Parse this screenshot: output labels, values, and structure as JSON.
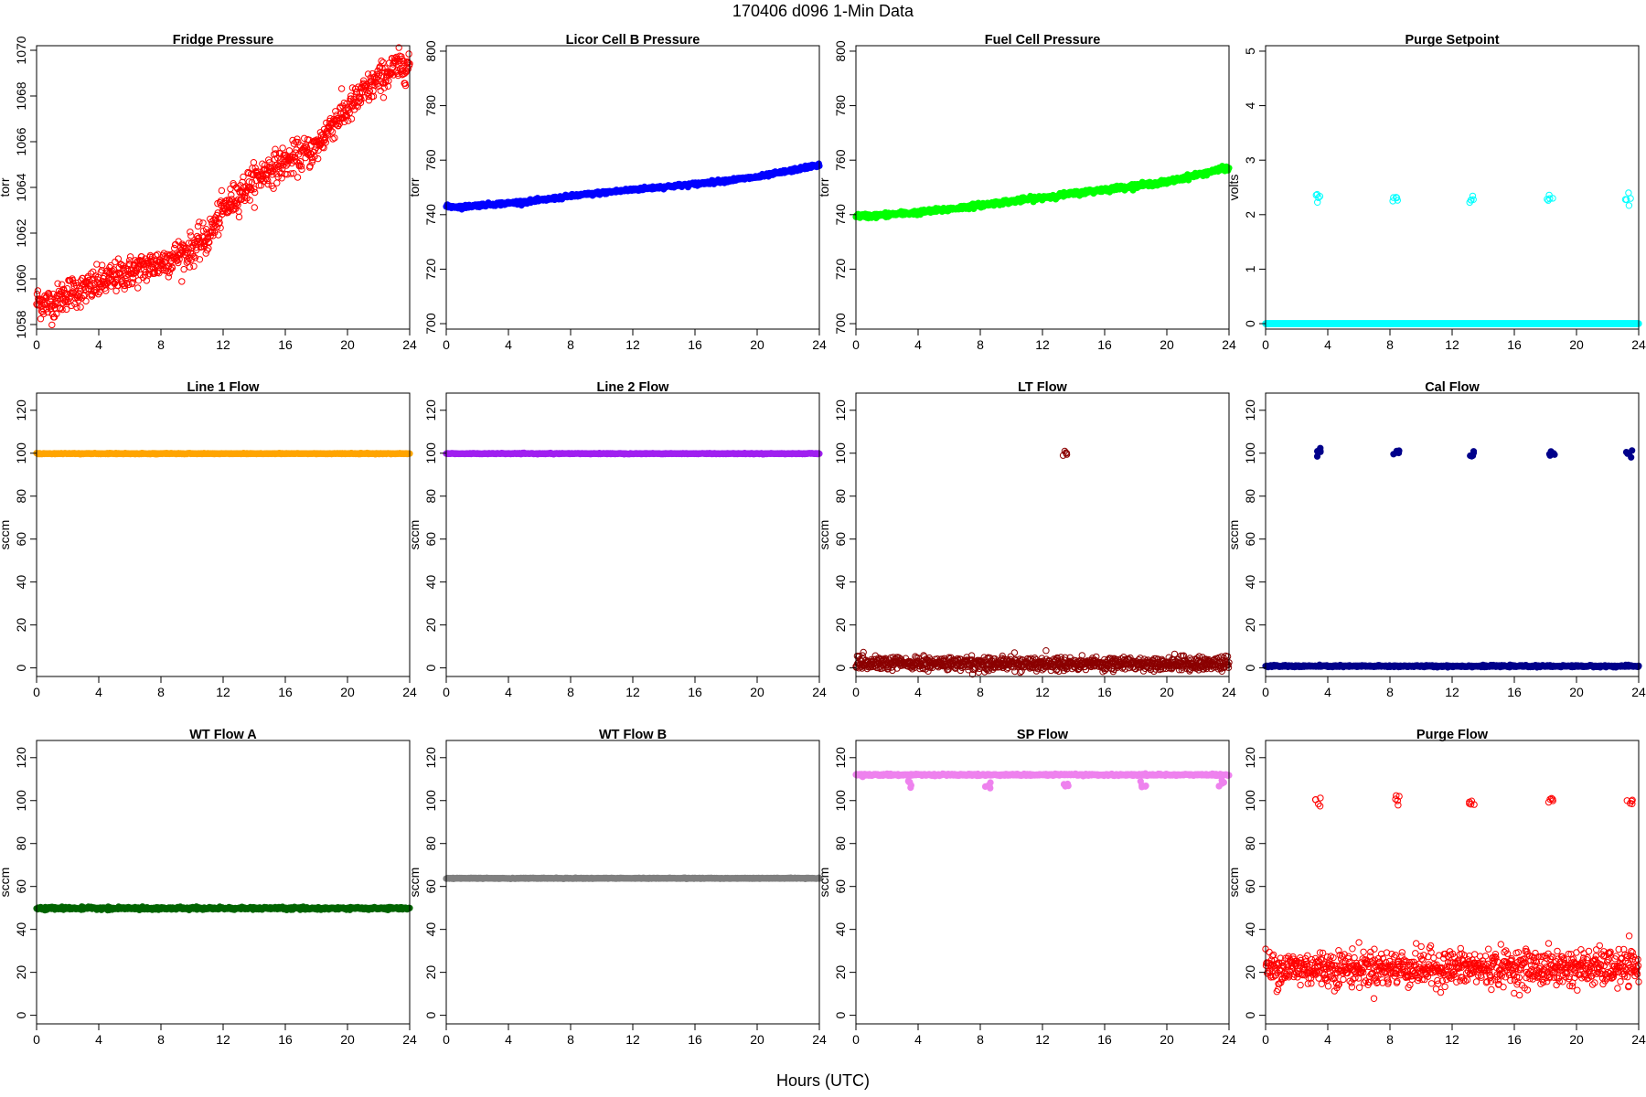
{
  "figure": {
    "title": "170406   d096   1-Min Data",
    "xlabel": "Hours (UTC)"
  },
  "chart_data": [
    {
      "type": "scatter",
      "title": "Fridge Pressure",
      "ylabel": "torr",
      "color": "#ff0000",
      "marker": "open",
      "xlim": [
        0,
        24
      ],
      "ylim": [
        1057.8,
        1070.2
      ],
      "x_ticks": [
        0,
        4,
        8,
        12,
        16,
        20,
        24
      ],
      "y_ticks": [
        1058,
        1060,
        1062,
        1064,
        1066,
        1068,
        1070
      ],
      "trend": [
        [
          0,
          1059.0
        ],
        [
          1,
          1058.9
        ],
        [
          2,
          1059.4
        ],
        [
          3,
          1059.5
        ],
        [
          4,
          1059.8
        ],
        [
          6,
          1060.3
        ],
        [
          8,
          1060.7
        ],
        [
          9,
          1061.0
        ],
        [
          10,
          1061.3
        ],
        [
          11,
          1061.8
        ],
        [
          12,
          1063.0
        ],
        [
          13,
          1063.7
        ],
        [
          14,
          1064.3
        ],
        [
          15,
          1064.8
        ],
        [
          16,
          1065.1
        ],
        [
          17,
          1065.4
        ],
        [
          18,
          1065.7
        ],
        [
          19,
          1066.8
        ],
        [
          20,
          1067.4
        ],
        [
          21,
          1068.1
        ],
        [
          22,
          1068.7
        ],
        [
          23,
          1069.2
        ],
        [
          24,
          1069.4
        ]
      ],
      "noise": 0.35
    },
    {
      "type": "scatter",
      "title": "Licor Cell B Pressure",
      "ylabel": "torr",
      "color": "#0000ff",
      "marker": "filled",
      "xlim": [
        0,
        24
      ],
      "ylim": [
        698,
        802
      ],
      "x_ticks": [
        0,
        4,
        8,
        12,
        16,
        20,
        24
      ],
      "y_ticks": [
        700,
        720,
        740,
        760,
        780,
        800
      ],
      "trend": [
        [
          0,
          743
        ],
        [
          1,
          742.8
        ],
        [
          2,
          743.4
        ],
        [
          4,
          744.2
        ],
        [
          6,
          745.2
        ],
        [
          8,
          746.8
        ],
        [
          12,
          749.2
        ],
        [
          16,
          751.2
        ],
        [
          20,
          753.8
        ],
        [
          22,
          756
        ],
        [
          24,
          758.3
        ]
      ],
      "noise": 0.3
    },
    {
      "type": "scatter",
      "title": "Fuel Cell Pressure",
      "ylabel": "torr",
      "color": "#00ff00",
      "marker": "filled",
      "xlim": [
        0,
        24
      ],
      "ylim": [
        698,
        802
      ],
      "x_ticks": [
        0,
        4,
        8,
        12,
        16,
        20,
        24
      ],
      "y_ticks": [
        700,
        720,
        740,
        760,
        780,
        800
      ],
      "trend": [
        [
          0,
          739.5
        ],
        [
          1,
          739.5
        ],
        [
          2,
          740.0
        ],
        [
          4,
          740.8
        ],
        [
          6,
          742.0
        ],
        [
          8,
          743.5
        ],
        [
          12,
          746.3
        ],
        [
          16,
          749.2
        ],
        [
          20,
          752.0
        ],
        [
          24,
          757.3
        ]
      ],
      "noise": 0.4
    },
    {
      "type": "scatter",
      "title": "Purge Setpoint",
      "ylabel": "volts",
      "color": "#00ffff",
      "marker": "open",
      "xlim": [
        0,
        24
      ],
      "ylim": [
        -0.1,
        5.1
      ],
      "x_ticks": [
        0,
        4,
        8,
        12,
        16,
        20,
        24
      ],
      "y_ticks": [
        0,
        1,
        2,
        3,
        4,
        5
      ],
      "baseline": 0,
      "noise": 0,
      "spikes": [
        {
          "x": 3.3,
          "y": 2.3
        },
        {
          "x": 8.3,
          "y": 2.28
        },
        {
          "x": 13.3,
          "y": 2.3
        },
        {
          "x": 18.3,
          "y": 2.3
        },
        {
          "x": 23.3,
          "y": 2.3
        }
      ]
    },
    {
      "type": "scatter",
      "title": "Line 1 Flow",
      "ylabel": "sccm",
      "color": "#ffa500",
      "marker": "filled",
      "xlim": [
        0,
        24
      ],
      "ylim": [
        -4,
        128
      ],
      "x_ticks": [
        0,
        4,
        8,
        12,
        16,
        20,
        24
      ],
      "y_ticks": [
        0,
        20,
        40,
        60,
        80,
        100,
        120
      ],
      "baseline": 99.8,
      "noise": 0.1
    },
    {
      "type": "scatter",
      "title": "Line 2 Flow",
      "ylabel": "sccm",
      "color": "#a020f0",
      "marker": "filled",
      "xlim": [
        0,
        24
      ],
      "ylim": [
        -4,
        128
      ],
      "x_ticks": [
        0,
        4,
        8,
        12,
        16,
        20,
        24
      ],
      "y_ticks": [
        0,
        20,
        40,
        60,
        80,
        100,
        120
      ],
      "baseline": 99.8,
      "noise": 0.1
    },
    {
      "type": "scatter",
      "title": "LT Flow",
      "ylabel": "sccm",
      "color": "#8b0000",
      "marker": "open",
      "xlim": [
        0,
        24
      ],
      "ylim": [
        -4,
        128
      ],
      "x_ticks": [
        0,
        4,
        8,
        12,
        16,
        20,
        24
      ],
      "y_ticks": [
        0,
        20,
        40,
        60,
        80,
        100,
        120
      ],
      "baseline": 2,
      "noise": 1.6,
      "spikes": [
        {
          "x": 13.4,
          "y": 100
        }
      ]
    },
    {
      "type": "scatter",
      "title": "Cal Flow",
      "ylabel": "sccm",
      "color": "#00008b",
      "marker": "filled",
      "xlim": [
        0,
        24
      ],
      "ylim": [
        -4,
        128
      ],
      "x_ticks": [
        0,
        4,
        8,
        12,
        16,
        20,
        24
      ],
      "y_ticks": [
        0,
        20,
        40,
        60,
        80,
        100,
        120
      ],
      "baseline": 0.8,
      "noise": 0.2,
      "spikes": [
        {
          "x": 3.4,
          "y": 100
        },
        {
          "x": 8.4,
          "y": 100
        },
        {
          "x": 13.3,
          "y": 100
        },
        {
          "x": 18.4,
          "y": 100
        },
        {
          "x": 23.4,
          "y": 100
        }
      ]
    },
    {
      "type": "scatter",
      "title": "WT Flow A",
      "ylabel": "sccm",
      "color": "#006400",
      "marker": "filled",
      "xlim": [
        0,
        24
      ],
      "ylim": [
        -4,
        128
      ],
      "x_ticks": [
        0,
        4,
        8,
        12,
        16,
        20,
        24
      ],
      "y_ticks": [
        0,
        20,
        40,
        60,
        80,
        100,
        120
      ],
      "baseline": 49.8,
      "noise": 0.3
    },
    {
      "type": "scatter",
      "title": "WT Flow B",
      "ylabel": "sccm",
      "color": "#808080",
      "marker": "filled",
      "xlim": [
        0,
        24
      ],
      "ylim": [
        -4,
        128
      ],
      "x_ticks": [
        0,
        4,
        8,
        12,
        16,
        20,
        24
      ],
      "y_ticks": [
        0,
        20,
        40,
        60,
        80,
        100,
        120
      ],
      "baseline": 63.8,
      "noise": 0.1
    },
    {
      "type": "scatter",
      "title": "SP Flow",
      "ylabel": "sccm",
      "color": "#ee82ee",
      "marker": "filled",
      "xlim": [
        0,
        24
      ],
      "ylim": [
        -4,
        128
      ],
      "x_ticks": [
        0,
        4,
        8,
        12,
        16,
        20,
        24
      ],
      "y_ticks": [
        0,
        20,
        40,
        60,
        80,
        100,
        120
      ],
      "baseline": 112,
      "noise": 0.2,
      "spikes": [
        {
          "x": 3.5,
          "y": 107.5
        },
        {
          "x": 8.5,
          "y": 107.5
        },
        {
          "x": 13.5,
          "y": 107
        },
        {
          "x": 18.5,
          "y": 107.5
        },
        {
          "x": 23.5,
          "y": 107.5
        }
      ]
    },
    {
      "type": "scatter",
      "title": "Purge Flow",
      "ylabel": "sccm",
      "color": "#ff0000",
      "marker": "open",
      "xlim": [
        0,
        24
      ],
      "ylim": [
        -4,
        128
      ],
      "x_ticks": [
        0,
        4,
        8,
        12,
        16,
        20,
        24
      ],
      "y_ticks": [
        0,
        20,
        40,
        60,
        80,
        100,
        120
      ],
      "baseline": 22,
      "noise": 4.2,
      "spikes": [
        {
          "x": 3.4,
          "y": 100
        },
        {
          "x": 8.4,
          "y": 100
        },
        {
          "x": 13.3,
          "y": 100
        },
        {
          "x": 18.4,
          "y": 100
        },
        {
          "x": 23.4,
          "y": 99.5
        }
      ]
    }
  ]
}
